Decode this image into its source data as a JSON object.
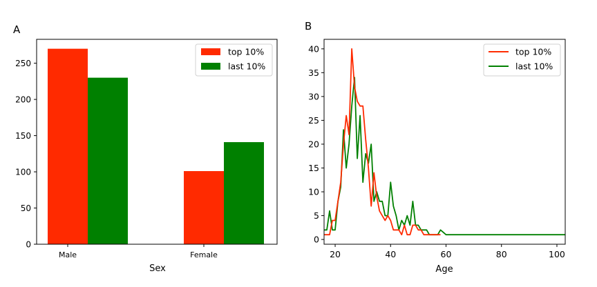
{
  "chart_data": [
    {
      "panel_label": "A",
      "type": "bar",
      "title": "",
      "xlabel": "Sex",
      "ylabel": "",
      "categories": [
        "Male",
        "Female"
      ],
      "series": [
        {
          "name": "top 10%",
          "color": "#ff2a00",
          "values": [
            270,
            101
          ]
        },
        {
          "name": "last 10%",
          "color": "#008000",
          "values": [
            230,
            141
          ]
        }
      ],
      "ylim": [
        0,
        283
      ],
      "yticks": [
        0,
        50,
        100,
        150,
        200,
        250
      ],
      "grid": false,
      "legend": "top-right"
    },
    {
      "panel_label": "B",
      "type": "line",
      "title": "",
      "xlabel": "Age",
      "ylabel": "",
      "xlim": [
        16,
        103
      ],
      "ylim": [
        -1,
        42
      ],
      "xticks": [
        20,
        40,
        60,
        80,
        100
      ],
      "yticks": [
        0,
        5,
        10,
        15,
        20,
        25,
        30,
        35,
        40
      ],
      "grid": false,
      "legend": "top-right",
      "series": [
        {
          "name": "top 10%",
          "color": "#ff2a00",
          "x": [
            16,
            17,
            18,
            19,
            20,
            21,
            22,
            23,
            24,
            25,
            26,
            27,
            28,
            29,
            30,
            31,
            32,
            33,
            34,
            35,
            36,
            37,
            38,
            39,
            40,
            41,
            42,
            43,
            44,
            45,
            46,
            47,
            48,
            49,
            50,
            51,
            52,
            53,
            54,
            55,
            56,
            57,
            58
          ],
          "y": [
            1,
            1,
            1,
            4,
            4,
            8,
            12,
            20,
            26,
            22,
            40,
            32,
            29,
            28,
            28,
            21,
            15,
            7,
            14,
            9,
            6,
            5,
            4,
            5,
            4,
            2,
            2,
            2,
            1,
            3,
            1,
            1,
            3,
            3,
            2,
            2,
            1,
            1,
            1,
            1,
            1,
            1,
            1
          ]
        },
        {
          "name": "last 10%",
          "color": "#008000",
          "x": [
            16,
            17,
            18,
            19,
            20,
            21,
            22,
            23,
            24,
            25,
            26,
            27,
            28,
            29,
            30,
            31,
            32,
            33,
            34,
            35,
            36,
            37,
            38,
            39,
            40,
            41,
            42,
            43,
            44,
            45,
            46,
            47,
            48,
            49,
            50,
            51,
            52,
            53,
            54,
            55,
            56,
            57,
            58,
            59,
            60,
            61,
            62,
            63,
            64,
            65,
            66,
            67,
            68,
            69,
            70,
            71,
            72,
            73,
            74,
            75,
            76,
            77,
            78,
            79,
            80,
            81,
            82,
            83,
            84,
            85,
            86,
            87,
            88,
            89,
            90,
            91,
            92,
            93,
            94,
            95,
            96,
            97,
            98,
            99,
            100,
            101,
            102,
            103
          ],
          "y": [
            2,
            2,
            6,
            2,
            2,
            8,
            11,
            23,
            15,
            20,
            28,
            34,
            17,
            26,
            12,
            18,
            16,
            20,
            8,
            10,
            8,
            8,
            5,
            5,
            12,
            7,
            5,
            2,
            4,
            3,
            5,
            3,
            8,
            3,
            3,
            2,
            2,
            2,
            1,
            1,
            1,
            1,
            2,
            1.5,
            1,
            1,
            1,
            1,
            1,
            1,
            1,
            1,
            1,
            1,
            1,
            1,
            1,
            1,
            1,
            1,
            1,
            1,
            1,
            1,
            1,
            1,
            1,
            1,
            1,
            1,
            1,
            1,
            1,
            1,
            1,
            1,
            1,
            1,
            1,
            1,
            1,
            1,
            1,
            1,
            1,
            1,
            1,
            1
          ]
        }
      ]
    }
  ]
}
